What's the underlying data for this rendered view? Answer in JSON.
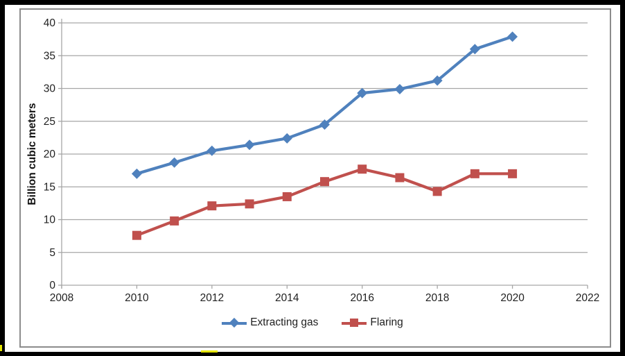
{
  "chart_data": {
    "type": "line",
    "title": "",
    "ylabel": "Billion cubic meters",
    "xlabel": "",
    "x": [
      2010,
      2011,
      2012,
      2013,
      2014,
      2015,
      2016,
      2017,
      2018,
      2019,
      2020
    ],
    "series": [
      {
        "name": "Extracting gas",
        "color": "#4f81bd",
        "marker": "diamond",
        "values": [
          17,
          18.7,
          20.5,
          21.4,
          22.4,
          24.5,
          29.3,
          29.9,
          31.2,
          36,
          37.9
        ]
      },
      {
        "name": "Flaring",
        "color": "#c0504d",
        "marker": "square",
        "values": [
          7.6,
          9.8,
          12.1,
          12.4,
          13.5,
          15.8,
          17.7,
          16.4,
          14.3,
          17,
          17
        ]
      }
    ],
    "x_axis": {
      "min": 2008,
      "max": 2022,
      "tick_step": 2,
      "tick_labels": [
        "2008",
        "2010",
        "2012",
        "2014",
        "2016",
        "2018",
        "2020",
        "2022"
      ]
    },
    "y_axis": {
      "min": 0,
      "max": 40,
      "tick_step": 5,
      "tick_labels": [
        "0",
        "5",
        "10",
        "15",
        "20",
        "25",
        "30",
        "35",
        "40"
      ]
    },
    "grid": true,
    "legend_position": "bottom",
    "colors": {
      "gridline": "#a6a6a6",
      "axis": "#a6a6a6",
      "tick_text": "#1f1f1f",
      "frame_border": "#8c8c8c",
      "outer_border": "#000000",
      "accent": "#e6e600"
    }
  }
}
